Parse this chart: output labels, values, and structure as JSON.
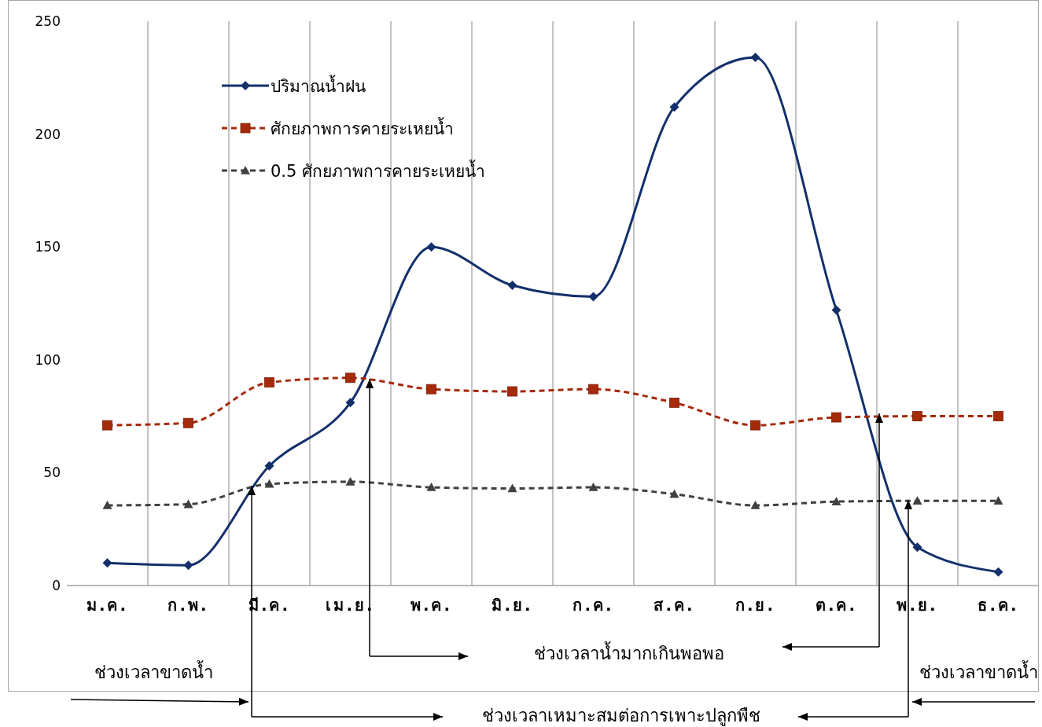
{
  "chart_data": {
    "type": "line",
    "categories": [
      "ม.ค.",
      "ก.พ.",
      "มี.ค.",
      "เม.ย.",
      "พ.ค.",
      "มิ.ย.",
      "ก.ค.",
      "ส.ค.",
      "ก.ย.",
      "ต.ค.",
      "พ.ย.",
      "ธ.ค."
    ],
    "series": [
      {
        "name": "ปริมาณน้ำฝน",
        "color": "#13306b",
        "marker": "diamond",
        "line_style": "solid",
        "values": [
          10,
          9,
          53,
          81,
          150,
          133,
          128,
          212,
          234,
          122,
          17,
          6
        ]
      },
      {
        "name": "ศักยภาพการคายระเหยน้ำ",
        "color": "#a52a0a",
        "marker": "square",
        "line_style": "dashed",
        "values": [
          71,
          72,
          90,
          92,
          87,
          86,
          87,
          81,
          71,
          74.5,
          75,
          75
        ]
      },
      {
        "name": "0.5 ศักยภาพการคายระเหยน้ำ",
        "color": "#404040",
        "marker": "triangle",
        "line_style": "dashed",
        "values": [
          35.5,
          36,
          45,
          46,
          43.5,
          43,
          43.5,
          40.5,
          35.5,
          37.2,
          37.5,
          37.5
        ]
      }
    ],
    "ylim": [
      0,
      250
    ],
    "yticks": [
      0,
      50,
      100,
      150,
      200,
      250
    ],
    "grid": "x",
    "legend": "top left",
    "annotations": [
      "ช่วงเวลาขาดน้ำ",
      "ช่วงเวลาน้ำมากเกินพอพอ",
      "ช่วงเวลาขาดน้ำ",
      "ช่วงเวลาเหมาะสมต่อการเพาะปลูกพืช"
    ]
  }
}
